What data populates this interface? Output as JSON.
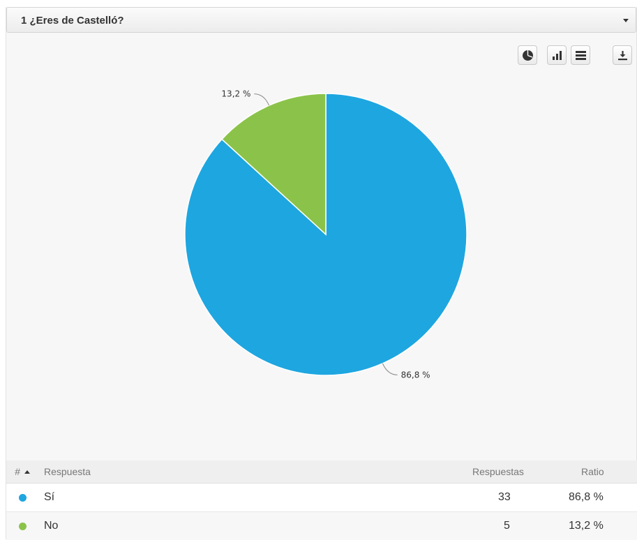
{
  "question": {
    "title": "1 ¿Eres de Castelló?"
  },
  "toolbar": {
    "buttons": [
      {
        "name": "pie-chart-view",
        "icon": "pie-chart-icon"
      },
      {
        "name": "bar-chart-view",
        "icon": "bar-chart-icon"
      },
      {
        "name": "table-view",
        "icon": "list-icon"
      },
      {
        "name": "download",
        "icon": "download-icon"
      }
    ]
  },
  "chart_data": {
    "type": "pie",
    "categories": [
      "Sí",
      "No"
    ],
    "values": [
      86.8,
      13.2
    ],
    "labels": [
      "86,8 %",
      "13,2 %"
    ],
    "colors": [
      "#1ea6e0",
      "#8bc34a"
    ]
  },
  "table": {
    "headers": {
      "index": "#",
      "answer": "Respuesta",
      "responses": "Respuestas",
      "ratio": "Ratio"
    },
    "rows": [
      {
        "answer": "Sí",
        "responses": "33",
        "ratio": "86,8 %",
        "color": "#1ea6e0"
      },
      {
        "answer": "No",
        "responses": "5",
        "ratio": "13,2 %",
        "color": "#8bc34a"
      }
    ]
  }
}
